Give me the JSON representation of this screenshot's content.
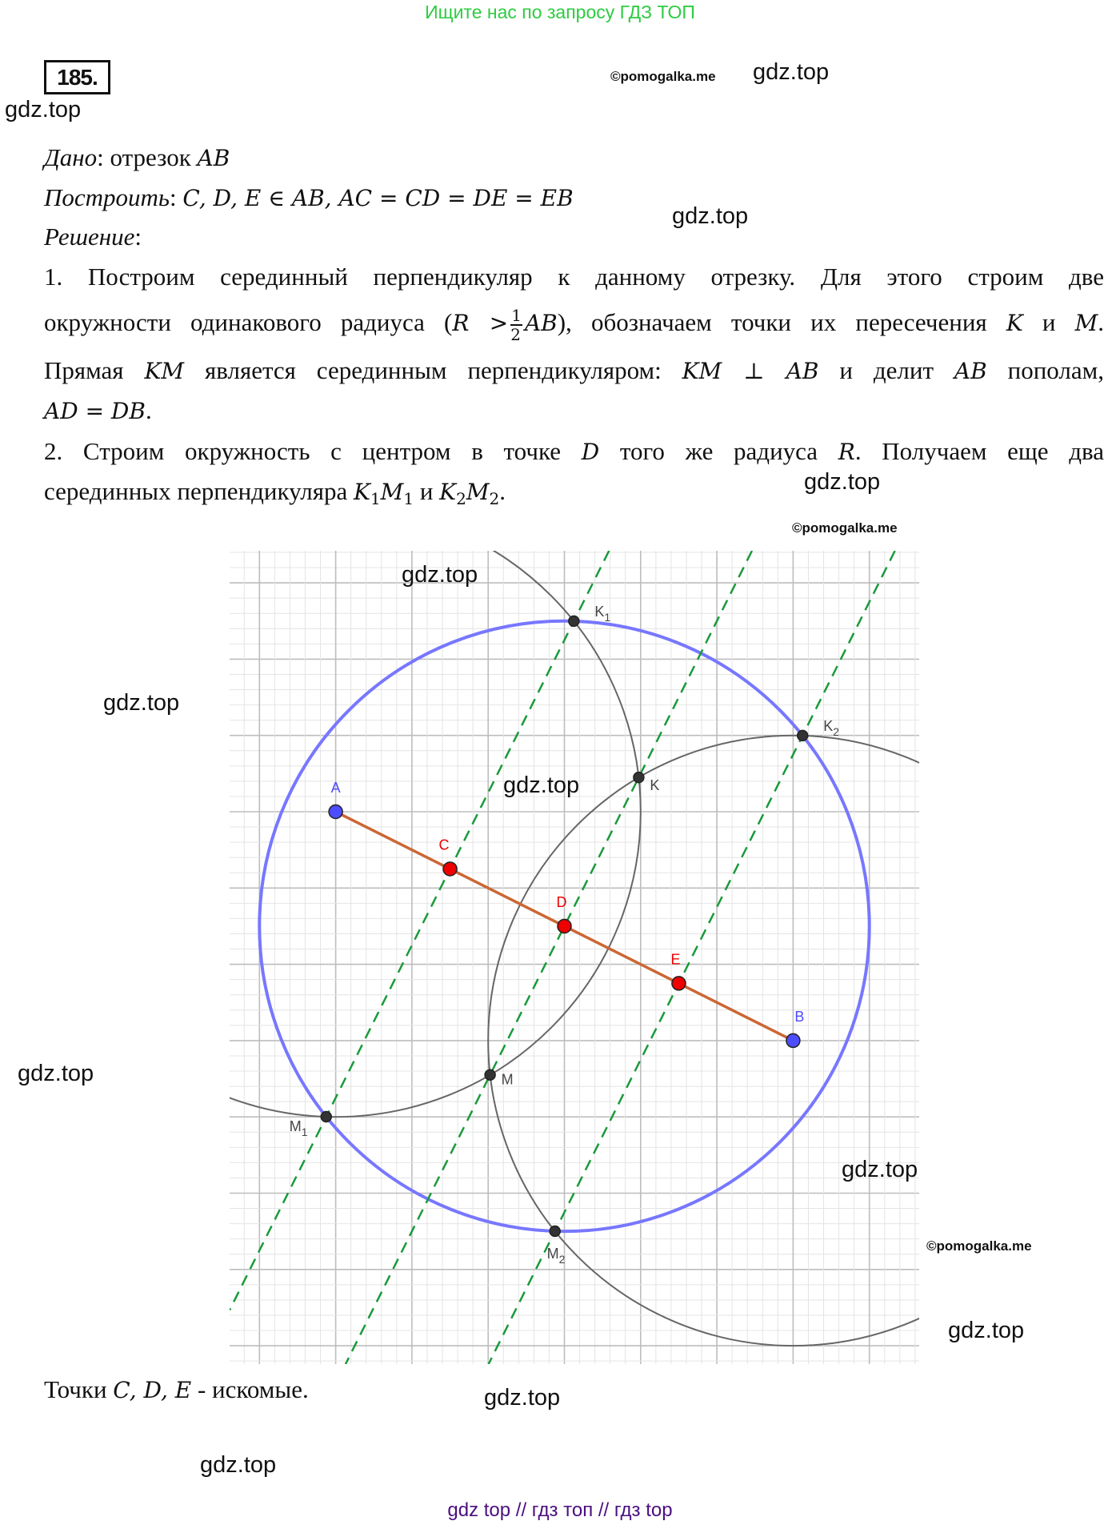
{
  "header_banner": "Ищите нас по запросу ГДЗ ТОП",
  "problem_number": "185.",
  "watermarks": {
    "gdz": "gdz.top",
    "pomogalka": "©pomogalka.me"
  },
  "text_lines": [
    [
      {
        "t": "Дано",
        "s": "it"
      },
      {
        "t": ": отрезок "
      },
      {
        "t": "AB",
        "s": "m"
      }
    ],
    [
      {
        "t": "Построить",
        "s": "it"
      },
      {
        "t": ": "
      },
      {
        "t": "C, D, E ∈ AB, AC = CD = DE = EB",
        "s": "m"
      }
    ],
    [
      {
        "t": "Решение",
        "s": "it"
      },
      {
        "t": ":"
      }
    ],
    [
      {
        "t": "1. Построим серединный перпендикуляр к данному отрезку. Для этого строим две"
      }
    ],
    [
      {
        "t": "окружности одинакового радиуса ("
      },
      {
        "t": "R >",
        "s": "m"
      },
      {
        "s": "frac",
        "n": "1",
        "d": "2"
      },
      {
        "t": "AB",
        "s": "m"
      },
      {
        "t": "), обозначаем точки их пересечения "
      },
      {
        "t": "K",
        "s": "m"
      },
      {
        "t": " и "
      },
      {
        "t": "M",
        "s": "m"
      },
      {
        "t": "."
      }
    ],
    [
      {
        "t": "Прямая "
      },
      {
        "t": "KM",
        "s": "m"
      },
      {
        "t": " является серединным перпендикуляром: "
      },
      {
        "t": "KM ⊥ AB",
        "s": "m"
      },
      {
        "t": " и делит "
      },
      {
        "t": "AB",
        "s": "m"
      },
      {
        "t": " пополам,"
      }
    ],
    [
      {
        "t": "AD = DB",
        "s": "m"
      },
      {
        "t": "."
      }
    ],
    [
      {
        "t": "2. Строим окружность с центром в точке "
      },
      {
        "t": "D",
        "s": "m"
      },
      {
        "t": " того же радиуса "
      },
      {
        "t": "R",
        "s": "m"
      },
      {
        "t": ". Получаем еще два"
      }
    ],
    [
      {
        "t": "серединных перпендикуляра "
      },
      {
        "t": "K",
        "s": "m"
      },
      {
        "t": "1",
        "s": "sub"
      },
      {
        "t": "M",
        "s": "m"
      },
      {
        "t": "1",
        "s": "sub"
      },
      {
        "t": " и "
      },
      {
        "t": "K",
        "s": "m"
      },
      {
        "t": "2",
        "s": "sub"
      },
      {
        "t": "M",
        "s": "m"
      },
      {
        "t": "2",
        "s": "sub"
      },
      {
        "t": "."
      }
    ]
  ],
  "conclusion": [
    {
      "t": "Точки "
    },
    {
      "t": "C, D, E",
      "s": "m"
    },
    {
      "t": " - искомые."
    }
  ],
  "figure": {
    "points": {
      "A": {
        "label": "A",
        "sub": "",
        "color": "#4d4dff"
      },
      "B": {
        "label": "B",
        "sub": "",
        "color": "#4d4dff"
      },
      "C": {
        "label": "C",
        "sub": "",
        "color": "#ee0000"
      },
      "D": {
        "label": "D",
        "sub": "",
        "color": "#ee0000"
      },
      "E": {
        "label": "E",
        "sub": "",
        "color": "#ee0000"
      },
      "K": {
        "label": "K",
        "sub": "",
        "color": "#333333"
      },
      "M": {
        "label": "M",
        "sub": "",
        "color": "#333333"
      },
      "K1": {
        "label": "K",
        "sub": "1",
        "color": "#333333"
      },
      "M1": {
        "label": "M",
        "sub": "1",
        "color": "#333333"
      },
      "K2": {
        "label": "K",
        "sub": "2",
        "color": "#333333"
      },
      "M2": {
        "label": "M",
        "sub": "2",
        "color": "#333333"
      }
    },
    "colors": {
      "circle": "#7777ff",
      "arcs": "#666666",
      "segment": "#cc6633",
      "bisectors": "#1a9a3a",
      "grid_major": "#bdbdbd",
      "grid_minor": "#e4e4e4"
    }
  },
  "footer": "gdz top  //  гдз топ  //  гдз top"
}
